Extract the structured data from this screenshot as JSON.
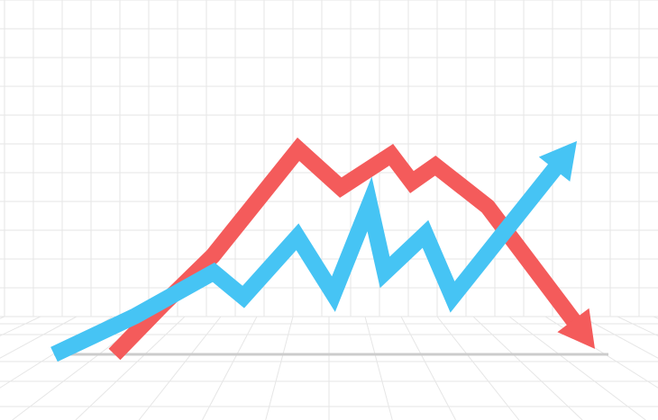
{
  "chart_data": {
    "type": "line",
    "title": "",
    "xlabel": "",
    "ylabel": "",
    "grid": true,
    "legend": false,
    "x": [
      0,
      1,
      2,
      3,
      4,
      5,
      6,
      7,
      8,
      9
    ],
    "xlim": [
      0,
      9
    ],
    "ylim": [
      0,
      10
    ],
    "series": [
      {
        "color": "#f45b5b",
        "values": [
          0,
          1.8,
          3.6,
          7.5,
          6.1,
          7.3,
          6.3,
          6.9,
          5.4,
          0.2
        ],
        "direction": "down"
      },
      {
        "color": "#46c4f4",
        "values": [
          0,
          1.4,
          3.0,
          2.1,
          4.3,
          2.2,
          5.5,
          3.0,
          4.4,
          2.1,
          7.8
        ],
        "x": [
          0,
          1.6,
          3.3,
          3.9,
          5.1,
          5.9,
          6.6,
          7.1,
          7.8,
          8.4,
          10.6
        ],
        "direction": "up"
      }
    ],
    "colors": {
      "grid": "#e6e6e6",
      "floor_line": "#cccccc",
      "background": "#ffffff"
    }
  }
}
